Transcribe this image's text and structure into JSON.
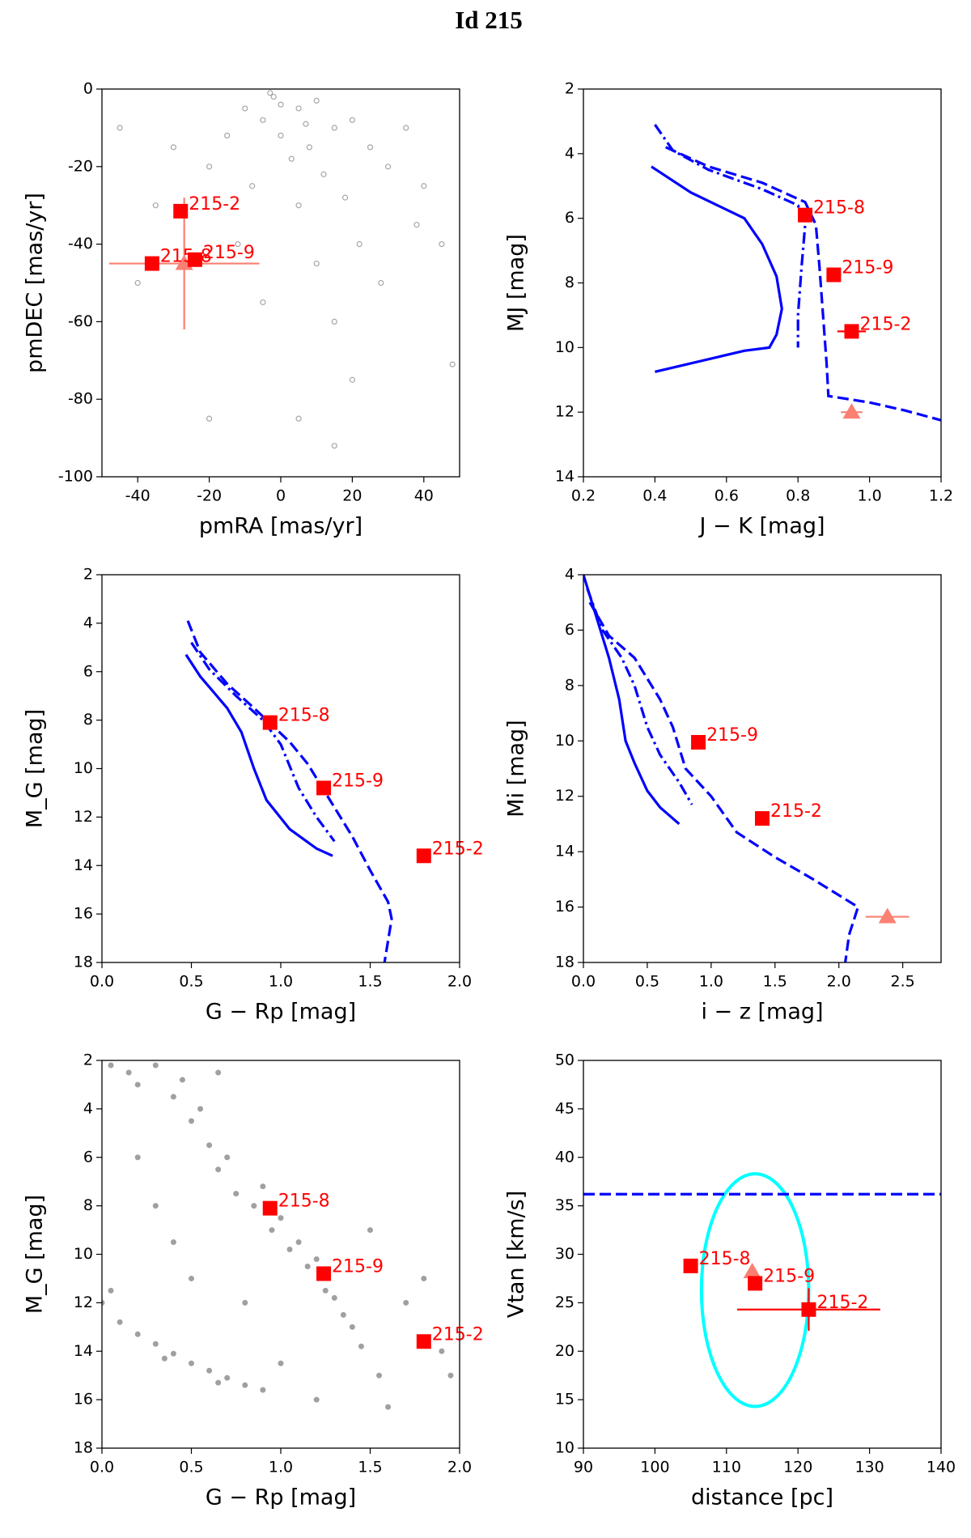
{
  "title": "Id 215",
  "chart_data": [
    {
      "type": "scatter",
      "xlabel": "pmRA [mas/yr]",
      "ylabel": "pmDEC [mas/yr]",
      "xlim": [
        -50,
        50
      ],
      "ylim": [
        -100,
        0
      ],
      "xticks": [
        -40,
        -20,
        0,
        20,
        40
      ],
      "yticks": [
        0,
        -20,
        -40,
        -60,
        -80,
        -100
      ],
      "series": [
        {
          "mode": "marker",
          "marker": "circle-open",
          "color": "#808080",
          "x": [
            -2,
            5,
            10,
            -5,
            15,
            0,
            8,
            20,
            -10,
            3,
            12,
            25,
            -15,
            30,
            -20,
            18,
            5,
            -8,
            35,
            -30,
            40,
            22,
            -35,
            10,
            -45,
            28,
            45,
            15,
            -5,
            20,
            5,
            -20,
            15,
            48,
            -40,
            38,
            -12,
            0,
            -3,
            7
          ],
          "values": [
            -2,
            -5,
            -3,
            -8,
            -10,
            -12,
            -15,
            -8,
            -5,
            -18,
            -22,
            -15,
            -12,
            -20,
            -20,
            -28,
            -30,
            -25,
            -10,
            -15,
            -25,
            -40,
            -30,
            -45,
            -10,
            -50,
            -40,
            -60,
            -55,
            -75,
            -85,
            -85,
            -92,
            -71,
            -50,
            -35,
            -40,
            -4,
            -1,
            -9
          ]
        },
        {
          "mode": "marker",
          "marker": "triangle",
          "color": "#fa8072",
          "x": [
            -27
          ],
          "values": [
            -45
          ],
          "xerr": [
            21
          ],
          "yerr": [
            17
          ]
        },
        {
          "mode": "marker",
          "marker": "square",
          "color": "#ff0000",
          "x": [
            -28,
            -36,
            -24
          ],
          "values": [
            -31.5,
            -45,
            -44
          ],
          "labels": [
            "215-2",
            "215-8",
            "215-9"
          ]
        }
      ]
    },
    {
      "type": "scatter",
      "xlabel": "J − K [mag]",
      "ylabel": "MJ [mag]",
      "xlim": [
        0.2,
        1.2
      ],
      "ylim": [
        14,
        2
      ],
      "xticks": [
        0.2,
        0.4,
        0.6,
        0.8,
        {
          "value": 1,
          "label": "1.0"
        },
        1.2
      ],
      "yticks": [
        2,
        4,
        6,
        8,
        10,
        12,
        14
      ],
      "series": [
        {
          "mode": "line",
          "style": "solid",
          "color": "#0000ff",
          "x": [
            0.39,
            0.5,
            0.65,
            0.7,
            0.74,
            0.755,
            0.74,
            0.72,
            0.65,
            0.4
          ],
          "values": [
            4.4,
            5.2,
            6.0,
            6.8,
            7.8,
            8.8,
            9.6,
            10.0,
            10.1,
            10.75
          ]
        },
        {
          "mode": "line",
          "style": "dashdot",
          "color": "#0000ff",
          "x": [
            0.4,
            0.45,
            0.55,
            0.7,
            0.8,
            0.82,
            0.81,
            0.8,
            0.8
          ],
          "values": [
            3.1,
            3.9,
            4.5,
            5.1,
            5.6,
            6.2,
            7.5,
            9.0,
            10.0
          ]
        },
        {
          "mode": "line",
          "style": "dashed",
          "color": "#0000ff",
          "x": [
            0.43,
            0.55,
            0.7,
            0.82,
            0.85,
            0.86,
            0.87,
            0.88,
            0.885,
            1.0,
            1.1,
            1.2
          ],
          "values": [
            3.8,
            4.4,
            4.9,
            5.5,
            6.2,
            7.5,
            9.0,
            10.5,
            11.5,
            11.7,
            11.95,
            12.25
          ]
        },
        {
          "mode": "marker",
          "marker": "triangle",
          "color": "#fa8072",
          "x": [
            0.95
          ],
          "values": [
            12.0
          ],
          "xerr": [
            0.03
          ]
        },
        {
          "mode": "marker",
          "marker": "square",
          "color": "#ff0000",
          "x": [
            0.82,
            0.9,
            0.95
          ],
          "values": [
            5.9,
            7.75,
            9.5
          ],
          "xerr": [
            0.02,
            0.02,
            0.04
          ],
          "labels": [
            "215-8",
            "215-9",
            "215-2"
          ]
        }
      ]
    },
    {
      "type": "scatter",
      "xlabel": "G − Rp [mag]",
      "ylabel": "M_G [mag]",
      "xlim": [
        0,
        2
      ],
      "ylim": [
        18,
        2
      ],
      "xticks": [
        {
          "value": 0,
          "label": "0.0"
        },
        0.5,
        {
          "value": 1,
          "label": "1.0"
        },
        1.5,
        {
          "value": 2,
          "label": "2.0"
        }
      ],
      "yticks": [
        2,
        4,
        6,
        8,
        10,
        12,
        14,
        16,
        18
      ],
      "series": [
        {
          "mode": "line",
          "style": "solid",
          "color": "#0000ff",
          "x": [
            0.47,
            0.55,
            0.7,
            0.78,
            0.85,
            0.92,
            1.05,
            1.2,
            1.29
          ],
          "values": [
            5.3,
            6.2,
            7.5,
            8.5,
            10.0,
            11.3,
            12.5,
            13.3,
            13.6
          ]
        },
        {
          "mode": "line",
          "style": "dashdot",
          "color": "#0000ff",
          "x": [
            0.5,
            0.6,
            0.75,
            0.9,
            1.0,
            1.1,
            1.2,
            1.3
          ],
          "values": [
            4.8,
            5.9,
            7.0,
            8.0,
            9.0,
            10.8,
            12.0,
            13.0
          ]
        },
        {
          "mode": "line",
          "style": "dashed",
          "color": "#0000ff",
          "x": [
            0.48,
            0.55,
            0.7,
            0.85,
            0.95,
            1.05,
            1.15,
            1.25,
            1.4,
            1.5,
            1.6,
            1.62,
            1.58
          ],
          "values": [
            3.9,
            5.2,
            6.5,
            7.5,
            8.2,
            8.9,
            9.8,
            11.0,
            12.8,
            14.2,
            15.5,
            16.2,
            18.0
          ]
        },
        {
          "mode": "marker",
          "marker": "square",
          "color": "#ff0000",
          "x": [
            0.94,
            1.24,
            1.8
          ],
          "values": [
            8.1,
            10.8,
            13.6
          ],
          "labels": [
            "215-8",
            "215-9",
            "215-2"
          ]
        }
      ]
    },
    {
      "type": "scatter",
      "xlabel": "i − z [mag]",
      "ylabel": "Mi [mag]",
      "xlim": [
        0,
        2.8
      ],
      "ylim": [
        18,
        4
      ],
      "xticks": [
        {
          "value": 0,
          "label": "0.0"
        },
        0.5,
        {
          "value": 1,
          "label": "1.0"
        },
        1.5,
        {
          "value": 2,
          "label": "2.0"
        },
        2.5
      ],
      "yticks": [
        4,
        6,
        8,
        10,
        12,
        14,
        16,
        18
      ],
      "series": [
        {
          "mode": "line",
          "style": "solid",
          "color": "#0000ff",
          "x": [
            0,
            0.1,
            0.2,
            0.28,
            0.33,
            0.4,
            0.5,
            0.6,
            0.75
          ],
          "values": [
            4.0,
            5.5,
            7.0,
            8.5,
            10.0,
            10.8,
            11.8,
            12.4,
            13.0
          ]
        },
        {
          "mode": "line",
          "style": "dashdot",
          "color": "#0000ff",
          "x": [
            0.03,
            0.15,
            0.3,
            0.4,
            0.5,
            0.6,
            0.75,
            0.85
          ],
          "values": [
            4.5,
            6.0,
            7.0,
            8.0,
            9.5,
            10.5,
            11.5,
            12.3
          ]
        },
        {
          "mode": "line",
          "style": "dashed",
          "color": "#0000ff",
          "x": [
            0.05,
            0.2,
            0.4,
            0.6,
            0.7,
            0.8,
            1.0,
            1.2,
            1.5,
            1.8,
            2.15,
            2.08,
            2.05
          ],
          "values": [
            5.0,
            6.2,
            7.0,
            8.5,
            9.5,
            11.0,
            12.0,
            13.3,
            14.2,
            15.0,
            16.0,
            17.0,
            18.0
          ]
        },
        {
          "mode": "marker",
          "marker": "triangle",
          "color": "#fa8072",
          "x": [
            2.38
          ],
          "values": [
            16.35
          ],
          "xerr": [
            0.17
          ]
        },
        {
          "mode": "marker",
          "marker": "square",
          "color": "#ff0000",
          "x": [
            0.9,
            1.4
          ],
          "values": [
            10.05,
            12.8
          ],
          "labels": [
            "215-9",
            "215-2"
          ]
        }
      ]
    },
    {
      "type": "scatter",
      "xlabel": "G − Rp [mag]",
      "ylabel": "M_G [mag]",
      "xlim": [
        0,
        2
      ],
      "ylim": [
        18,
        2
      ],
      "xticks": [
        {
          "value": 0,
          "label": "0.0"
        },
        0.5,
        {
          "value": 1,
          "label": "1.0"
        },
        1.5,
        {
          "value": 2,
          "label": "2.0"
        }
      ],
      "yticks": [
        2,
        4,
        6,
        8,
        10,
        12,
        14,
        16,
        18
      ],
      "series": [
        {
          "mode": "marker",
          "marker": "dot",
          "color": "#808080",
          "x": [
            0.05,
            0.15,
            0.3,
            0.4,
            0.5,
            0.6,
            0.65,
            0.75,
            0.85,
            0.95,
            1.05,
            1.15,
            1.25,
            1.35,
            1.45,
            1.55,
            1.6,
            0.9,
            1.0,
            1.1,
            1.2,
            1.3,
            1.4,
            0.7,
            0.55,
            0.45,
            0.65,
            0.2,
            0.0,
            0.1,
            0.2,
            0.3,
            0.4,
            0.5,
            0.6,
            0.7,
            0.8,
            0.9,
            0.05,
            0.35,
            0.65,
            0.3,
            0.5,
            0.2,
            1.7,
            1.9,
            1.5,
            0.8,
            1.0,
            1.2,
            0.4,
            1.8,
            1.95
          ],
          "values": [
            2.2,
            2.5,
            2.2,
            3.5,
            4.5,
            5.5,
            6.5,
            7.5,
            8.0,
            9.0,
            9.8,
            10.5,
            11.5,
            12.5,
            13.8,
            15.0,
            16.3,
            7.2,
            8.5,
            9.5,
            10.2,
            11.8,
            13.0,
            6.0,
            4.0,
            2.8,
            2.5,
            3.0,
            12.0,
            12.8,
            13.3,
            13.7,
            14.1,
            14.5,
            14.8,
            15.1,
            15.4,
            15.6,
            11.5,
            14.3,
            15.3,
            8,
            11,
            6,
            12,
            14,
            9,
            12,
            14.5,
            16,
            9.5,
            11,
            15
          ]
        },
        {
          "mode": "marker",
          "marker": "square",
          "color": "#ff0000",
          "x": [
            0.94,
            1.24,
            1.8
          ],
          "values": [
            8.1,
            10.8,
            13.6
          ],
          "labels": [
            "215-8",
            "215-9",
            "215-2"
          ]
        }
      ]
    },
    {
      "type": "scatter",
      "xlabel": "distance [pc]",
      "ylabel": "Vtan [km/s]",
      "xlim": [
        90,
        140
      ],
      "ylim": [
        10,
        50
      ],
      "xticks": [
        90,
        100,
        110,
        120,
        130,
        140
      ],
      "yticks": [
        10,
        15,
        20,
        25,
        30,
        35,
        40,
        45,
        50
      ],
      "shapes": [
        {
          "shape": "ellipse",
          "center": [
            114,
            26.3
          ],
          "radii": [
            7.5,
            12
          ],
          "color": "#00ffff"
        }
      ],
      "series": [
        {
          "mode": "line",
          "style": "dashed",
          "color": "#0000ff",
          "x": [
            90,
            140
          ],
          "values": [
            36.2,
            36.2
          ]
        },
        {
          "mode": "marker",
          "marker": "triangle",
          "color": "#fa8072",
          "x": [
            113.6
          ],
          "values": [
            28.2
          ]
        },
        {
          "mode": "marker",
          "marker": "square",
          "color": "#ff0000",
          "x": [
            105,
            114,
            121.5
          ],
          "values": [
            28.8,
            27,
            24.3
          ],
          "xerr": [
            null,
            1,
            10
          ],
          "yerr": [
            null,
            0.6,
            2.2
          ],
          "labels": [
            "215-8",
            "215-9",
            "215-2"
          ]
        }
      ]
    }
  ]
}
